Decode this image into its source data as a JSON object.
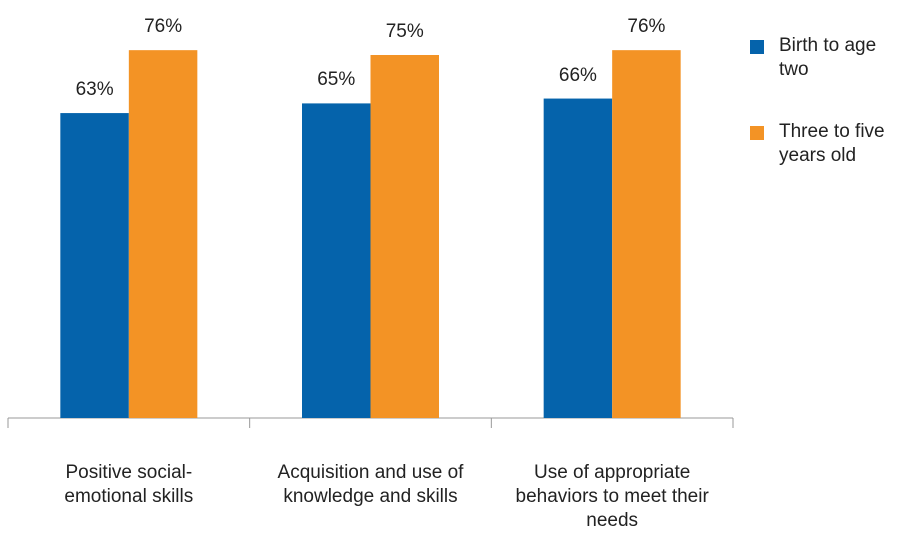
{
  "chart_data": {
    "type": "bar",
    "categories": [
      "Positive social-emotional skills",
      "Acquisition and use of knowledge and skills",
      "Use of appropriate behaviors to meet their needs"
    ],
    "series": [
      {
        "name": "Birth to age two",
        "color": "#0563ab",
        "values": [
          63,
          65,
          66
        ],
        "value_labels": [
          "63%",
          "65%",
          "66%"
        ]
      },
      {
        "name": "Three to five years old",
        "color": "#f39325",
        "values": [
          76,
          75,
          76
        ],
        "value_labels": [
          "76%",
          "75%",
          "76%"
        ]
      }
    ],
    "legend": "right"
  }
}
